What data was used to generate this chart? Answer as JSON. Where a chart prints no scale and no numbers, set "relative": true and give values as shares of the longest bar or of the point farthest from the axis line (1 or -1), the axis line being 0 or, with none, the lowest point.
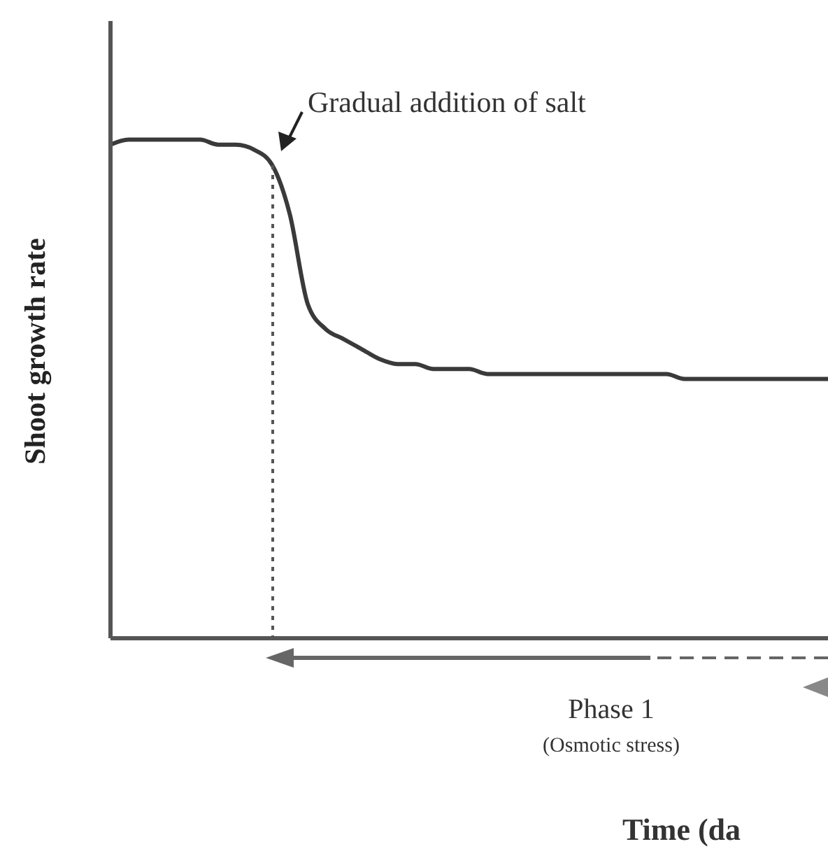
{
  "chart_data": {
    "type": "line",
    "relative": true,
    "ylabel": "Shoot growth rate",
    "categories": [
      null,
      null,
      null,
      null,
      null,
      null,
      null,
      null,
      null,
      null,
      null,
      null,
      null,
      null,
      null,
      null,
      null,
      null,
      null,
      null,
      null,
      null,
      null,
      null,
      null,
      null,
      null,
      null,
      null,
      null,
      null,
      null,
      null,
      null,
      null,
      null,
      null,
      null,
      null,
      null,
      null
    ],
    "color": "#3a3a3a",
    "marker": "none",
    "values": [
      0.99,
      1.0,
      1.0,
      1.0,
      1.0,
      1.0,
      0.99,
      0.99,
      0.98,
      0.95,
      0.85,
      0.67,
      0.62,
      0.6,
      0.58,
      0.56,
      0.55,
      0.55,
      0.54,
      0.54,
      0.54,
      0.53,
      0.53,
      0.53,
      0.53,
      0.53,
      0.53,
      0.53,
      0.53,
      0.53,
      0.53,
      0.53,
      0.52,
      0.52,
      0.52,
      0.52,
      0.52,
      0.52,
      0.52,
      0.52,
      0.52
    ],
    "annotations": [
      "Gradual addition of salt",
      "Phase 1",
      "(Osmotic stress)",
      "Time (da"
    ]
  }
}
